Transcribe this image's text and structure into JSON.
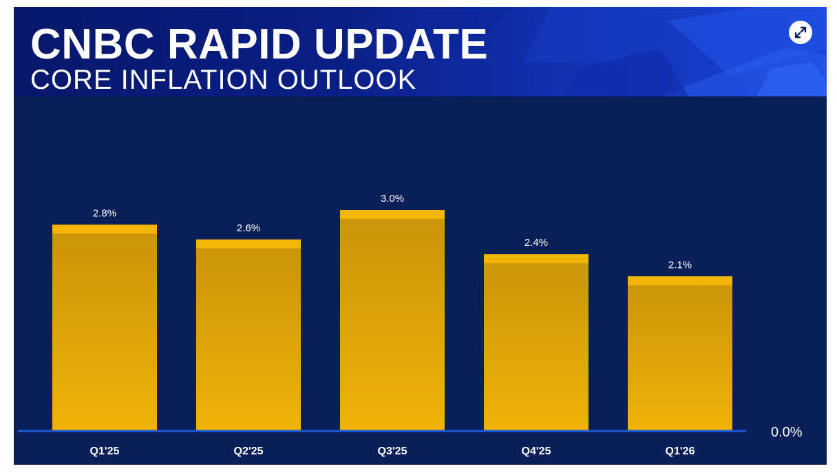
{
  "header": {
    "title": "CNBC RAPID UPDATE",
    "subtitle": "CORE INFLATION OUTLOOK",
    "expand_icon": "expand-arrows-icon"
  },
  "colors": {
    "background": "#0a1f57",
    "bar": "#d9a304",
    "bar_cap": "#f3b506",
    "baseline": "#1e5ad8",
    "text": "#ffffff"
  },
  "chart_data": {
    "type": "bar",
    "title": "CORE INFLATION OUTLOOK",
    "categories": [
      "Q1'25",
      "Q2'25",
      "Q3'25",
      "Q4'25",
      "Q1'26"
    ],
    "values": [
      2.8,
      2.6,
      3.0,
      2.4,
      2.1
    ],
    "value_labels": [
      "2.8%",
      "2.6%",
      "3.0%",
      "2.4%",
      "2.1%"
    ],
    "xlabel": "",
    "ylabel": "",
    "ylim": [
      0,
      3.0
    ],
    "baseline_label": "0.0%",
    "grid": false,
    "legend": "none"
  }
}
